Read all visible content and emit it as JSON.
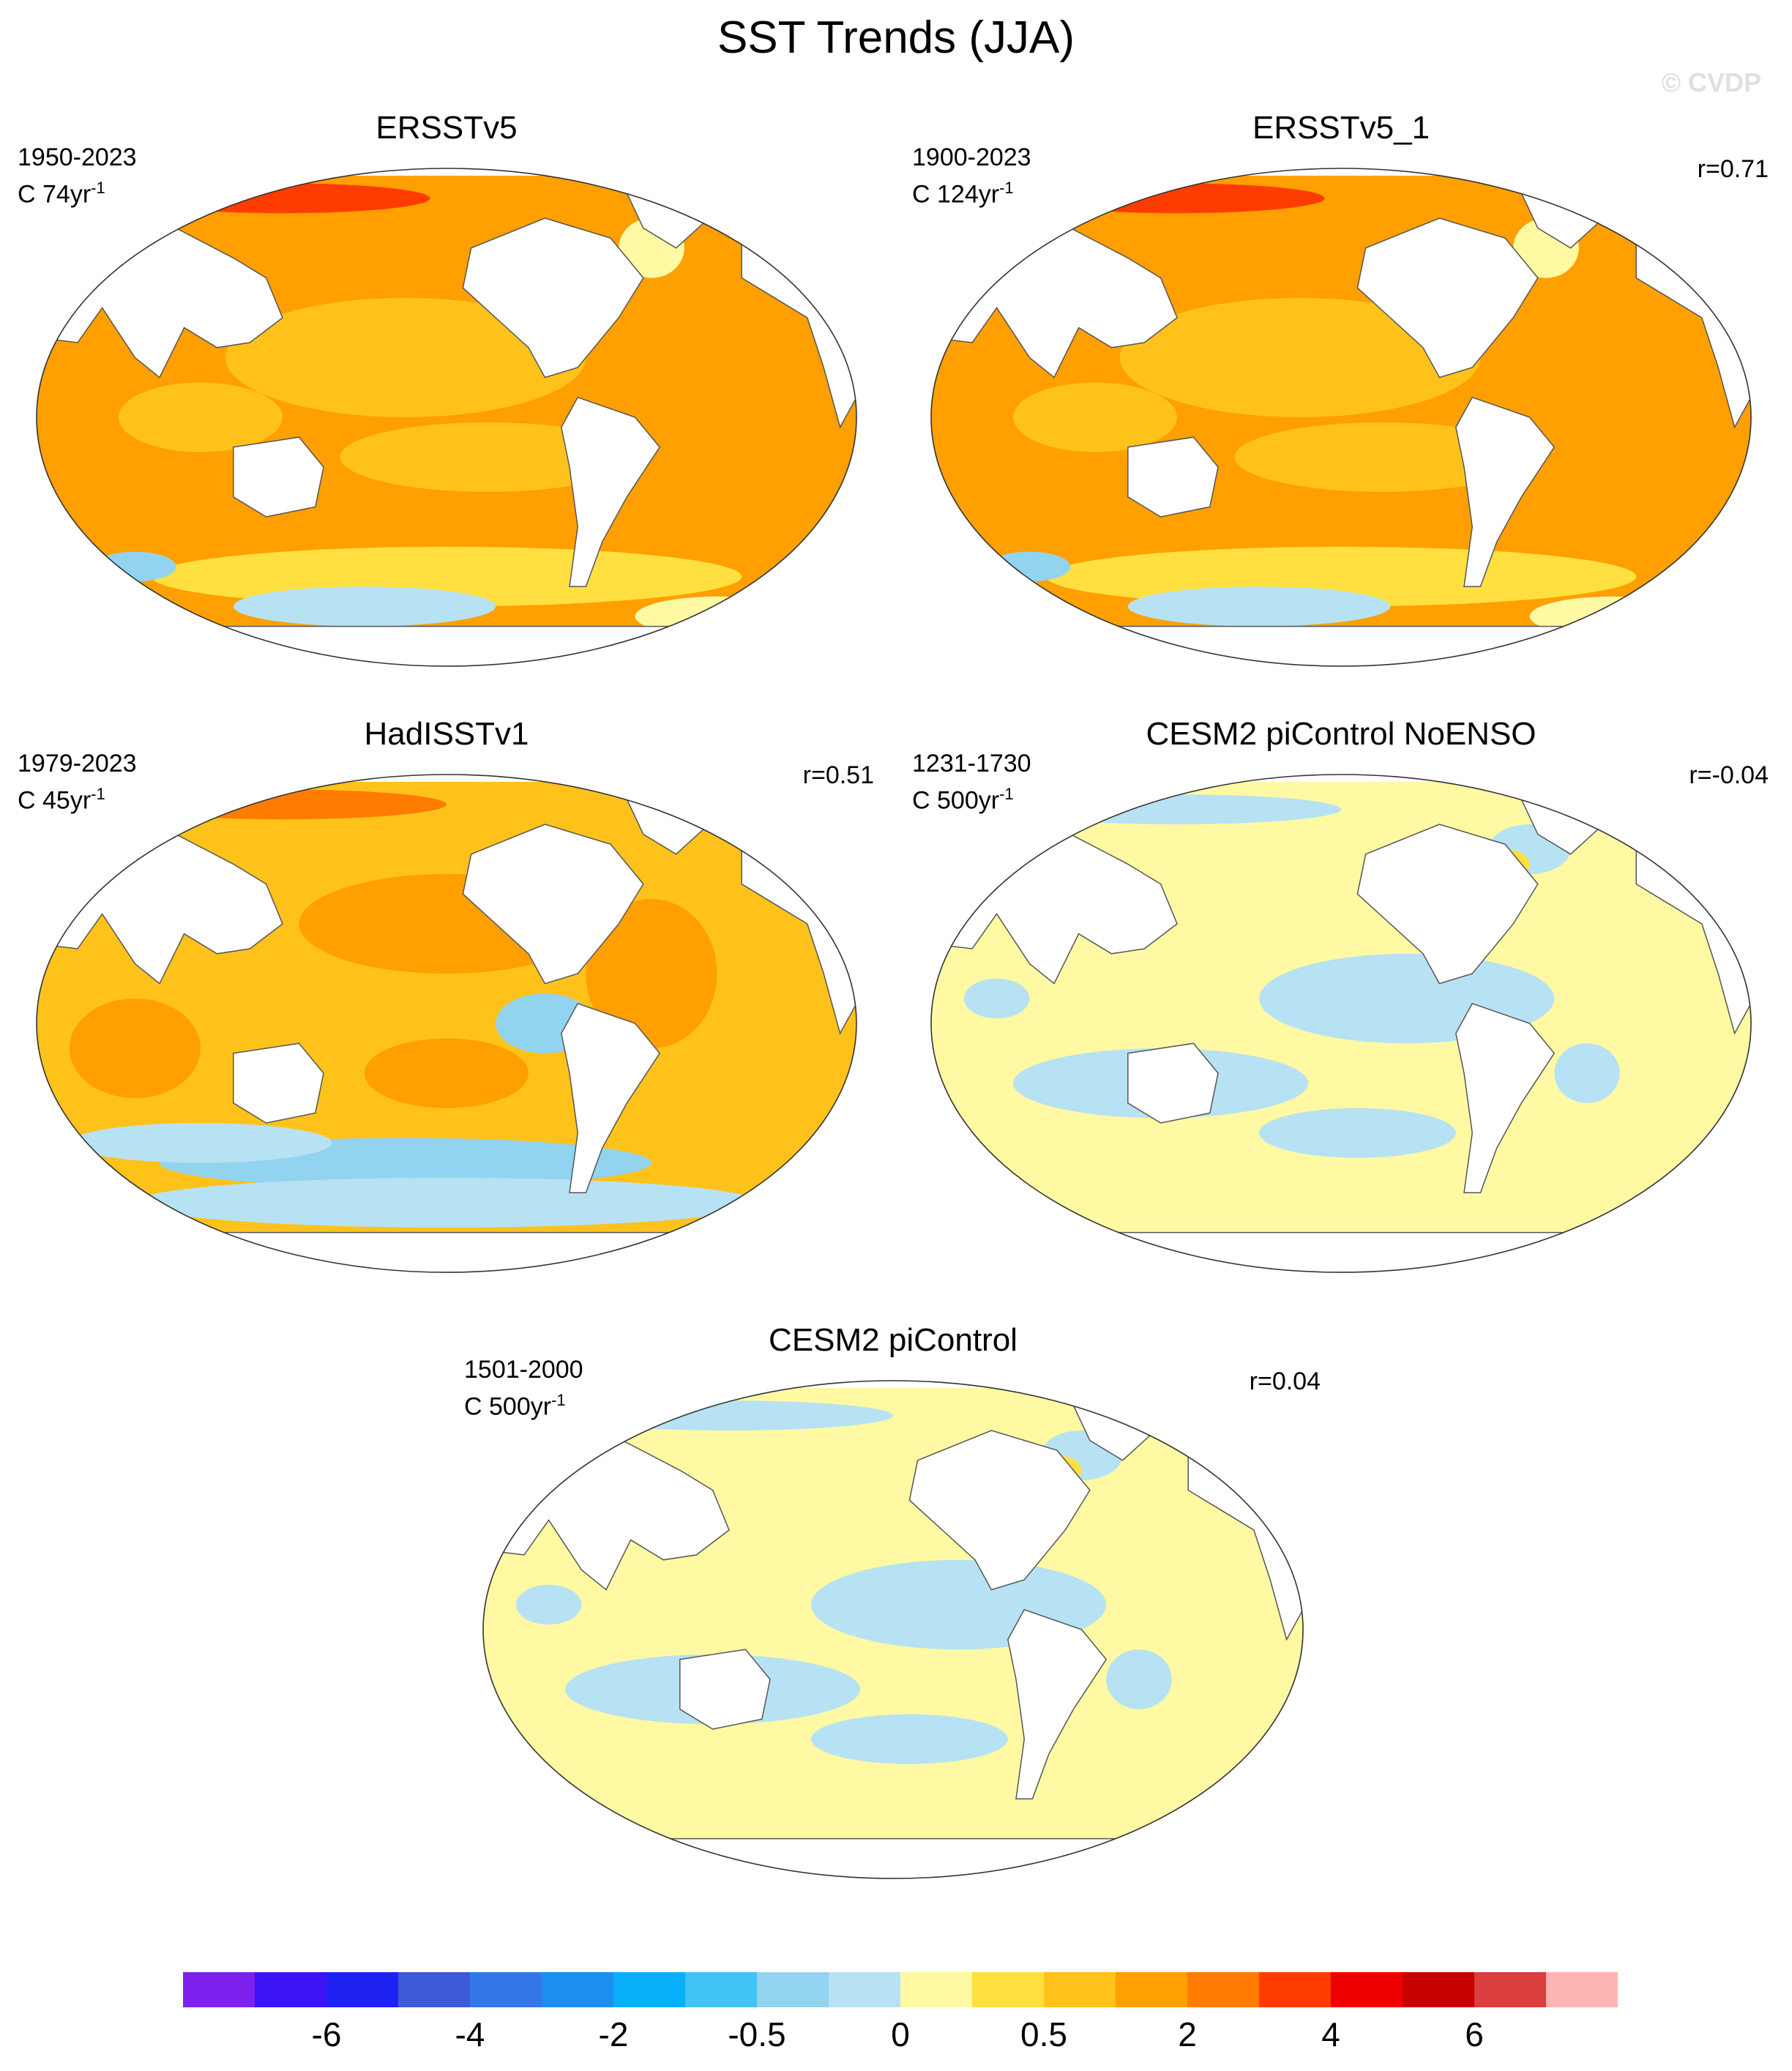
{
  "title": "SST Trends (JJA)",
  "credit": "© CVDP",
  "colorbar": {
    "colors": [
      "#7e21ee",
      "#3b13f4",
      "#1e22f0",
      "#3d5ad8",
      "#3478e8",
      "#1a8ff0",
      "#08b0fa",
      "#42c3f5",
      "#92d3ef",
      "#b7e2f4",
      "#fff9a3",
      "#ffe040",
      "#ffc21b",
      "#ff9f00",
      "#ff7c00",
      "#ff3c00",
      "#ee0000",
      "#c70000",
      "#da3e3e",
      "#ffb4b4"
    ],
    "tick_labels": [
      "-6",
      "-4",
      "-2",
      "-0.5",
      "0",
      "0.5",
      "2",
      "4",
      "6"
    ],
    "tick_boundaries": [
      2,
      4,
      6,
      8,
      10,
      12,
      14,
      16,
      18
    ]
  },
  "chart_data": [
    {
      "type": "heatmap",
      "title": "ERSSTv5",
      "years": "1950-2023",
      "units_prefix": "C 74yr",
      "units_exp": "-1",
      "r": "",
      "pattern": "warm_strong"
    },
    {
      "type": "heatmap",
      "title": "ERSSTv5_1",
      "years": "1900-2023",
      "units_prefix": "C 124yr",
      "units_exp": "-1",
      "r": "r=0.71",
      "pattern": "warm_strong"
    },
    {
      "type": "heatmap",
      "title": "HadISSTv1",
      "years": "1979-2023",
      "units_prefix": "C 45yr",
      "units_exp": "-1",
      "r": "r=0.51",
      "pattern": "warm_mixed"
    },
    {
      "type": "heatmap",
      "title": "CESM2 piControl NoENSO",
      "years": "1231-1730",
      "units_prefix": "C 500yr",
      "units_exp": "-1",
      "r": "r=-0.04",
      "pattern": "neutral"
    },
    {
      "type": "heatmap",
      "title": "CESM2 piControl",
      "years": "1501-2000",
      "units_prefix": "C 500yr",
      "units_exp": "-1",
      "r": "r=0.04",
      "pattern": "neutral"
    }
  ]
}
